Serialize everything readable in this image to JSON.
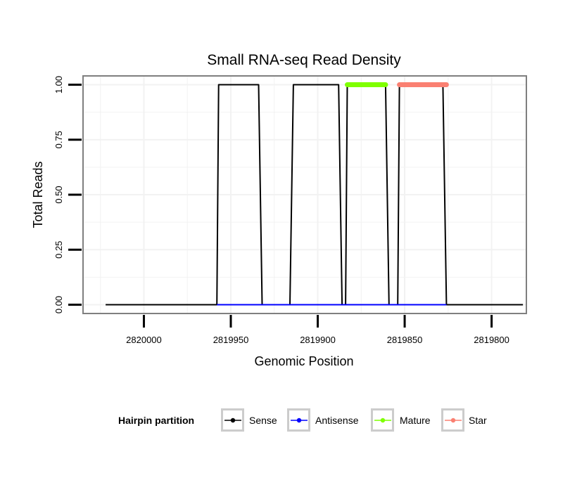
{
  "chart_data": {
    "type": "line",
    "title": "Small RNA-seq Read Density",
    "xlabel": "Genomic Position",
    "ylabel": "Total Reads",
    "xlim": [
      2820035,
      2819780
    ],
    "x_reversed": true,
    "ylim": [
      -0.04,
      1.04
    ],
    "x_ticks": [
      2820000,
      2819950,
      2819900,
      2819850,
      2819800
    ],
    "x_tick_labels": [
      "2820000",
      "2819950",
      "2819900",
      "2819850",
      "2819800"
    ],
    "y_ticks": [
      0,
      0.25,
      0.5,
      0.75,
      1
    ],
    "y_tick_labels": [
      "0.00",
      "0.25",
      "0.50",
      "0.75",
      "1.00"
    ],
    "grid": true,
    "legend": {
      "title": "Hairpin partition",
      "position": "bottom",
      "entries": [
        "Sense",
        "Antisense",
        "Mature",
        "Star"
      ]
    },
    "series": [
      {
        "name": "Sense",
        "color": "#000000",
        "x": [
          2820022,
          2819958,
          2819957,
          2819934,
          2819932,
          2819916,
          2819914,
          2819888,
          2819886,
          2819884,
          2819883,
          2819861,
          2819859,
          2819854,
          2819853,
          2819828,
          2819826,
          2819782
        ],
        "y": [
          0,
          0,
          1,
          1,
          0,
          0,
          1,
          1,
          0,
          0,
          1,
          1,
          0,
          0,
          1,
          1,
          0,
          0
        ]
      },
      {
        "name": "Antisense",
        "color": "#0000ff",
        "x": [
          2819958,
          2819826
        ],
        "y": [
          0,
          0
        ]
      },
      {
        "name": "Mature",
        "color": "#7fff00",
        "x": [
          2819883,
          2819861
        ],
        "y": [
          1,
          1
        ]
      },
      {
        "name": "Star",
        "color": "#fa8072",
        "x": [
          2819853,
          2819826
        ],
        "y": [
          1,
          1
        ]
      }
    ]
  }
}
